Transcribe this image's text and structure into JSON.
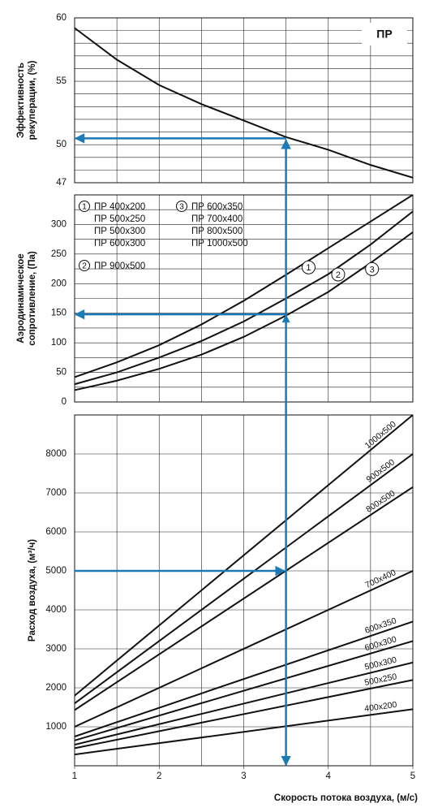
{
  "chart_data": [
    {
      "type": "line",
      "badge": "ПР",
      "ylabel": [
        "Эффективность",
        "рекуперации, (%)"
      ],
      "xlim": [
        1,
        5
      ],
      "xgrid": [
        1.5,
        2,
        2.5,
        3,
        3.5,
        4,
        4.5
      ],
      "ylim": [
        47,
        60
      ],
      "yticks": [
        47,
        50,
        55,
        60
      ],
      "ygrid": [
        48,
        49,
        51,
        52,
        53,
        54,
        56,
        57,
        58,
        59
      ],
      "x": [
        1,
        1.5,
        2,
        2.5,
        3,
        3.5,
        4,
        4.5,
        5
      ],
      "series": [
        {
          "color": "#111111",
          "values": [
            59.2,
            56.7,
            54.7,
            53.2,
            51.9,
            50.6,
            49.6,
            48.4,
            47.4
          ]
        }
      ],
      "guide": {
        "x": 3.5,
        "y": 50.5,
        "color": "#1b7ab8"
      }
    },
    {
      "type": "line",
      "ylabel": [
        "Аэродинамическое",
        "сопротивление, (Па)"
      ],
      "xlim": [
        1,
        5
      ],
      "xgrid": [
        1.5,
        2,
        2.5,
        3,
        3.5,
        4,
        4.5
      ],
      "ylim": [
        0,
        350
      ],
      "yticks": [
        0,
        50,
        100,
        150,
        200,
        250,
        300
      ],
      "ygrid": [
        25,
        75,
        125,
        175,
        225,
        275,
        325
      ],
      "x": [
        1,
        1.5,
        2,
        2.5,
        3,
        3.5,
        4,
        4.5,
        5
      ],
      "series": [
        {
          "name": "1",
          "color": "#111111",
          "values": [
            42,
            67,
            96,
            131,
            171,
            215,
            260,
            305,
            350
          ]
        },
        {
          "name": "2",
          "color": "#111111",
          "values": [
            30,
            50,
            75,
            103,
            136,
            175,
            216,
            266,
            322
          ]
        },
        {
          "name": "3",
          "color": "#111111",
          "values": [
            20,
            36,
            56,
            80,
            110,
            146,
            186,
            235,
            287
          ]
        }
      ],
      "legend": [
        {
          "marker": "1",
          "items": [
            "ПР 400х200",
            "ПР 500х250",
            "ПР 500х300",
            "ПР 600х300"
          ]
        },
        {
          "marker": "2",
          "items": [
            "ПР 900х500"
          ]
        },
        {
          "marker": "3",
          "items": [
            "ПР 600х350",
            "ПР 700х400",
            "ПР 800х500",
            "ПР 1000х500"
          ]
        }
      ],
      "guide": {
        "x": 3.5,
        "y": 148,
        "color": "#1b7ab8"
      }
    },
    {
      "type": "line",
      "ylabel": [
        "Расход воздуха, (м³/ч)"
      ],
      "xlabel": "Скорость потока воздуха, (м/с)",
      "xlim": [
        1,
        5
      ],
      "xticks": [
        1,
        2,
        3,
        4,
        5
      ],
      "xgrid": [
        1.5,
        2,
        2.5,
        3,
        3.5,
        4,
        4.5
      ],
      "ylim": [
        0,
        9000
      ],
      "yticks": [
        1000,
        2000,
        3000,
        4000,
        5000,
        6000,
        7000,
        8000
      ],
      "x": [
        1,
        5
      ],
      "series": [
        {
          "name": "1000х500",
          "color": "#111111",
          "values": [
            1800,
            9000
          ]
        },
        {
          "name": "900х500",
          "color": "#111111",
          "values": [
            1600,
            8000
          ]
        },
        {
          "name": "800х500",
          "color": "#111111",
          "values": [
            1430,
            7150
          ]
        },
        {
          "name": "700х400",
          "color": "#111111",
          "values": [
            1000,
            5000
          ]
        },
        {
          "name": "600х350",
          "color": "#111111",
          "values": [
            750,
            3700
          ]
        },
        {
          "name": "600х300",
          "color": "#111111",
          "values": [
            650,
            3200
          ]
        },
        {
          "name": "500х300",
          "color": "#111111",
          "values": [
            540,
            2650
          ]
        },
        {
          "name": "500х250",
          "color": "#111111",
          "values": [
            450,
            2200
          ]
        },
        {
          "name": "400х200",
          "color": "#111111",
          "values": [
            290,
            1450
          ]
        }
      ],
      "guide": {
        "x": 3.5,
        "y": 5000,
        "color": "#1b7ab8"
      }
    }
  ]
}
